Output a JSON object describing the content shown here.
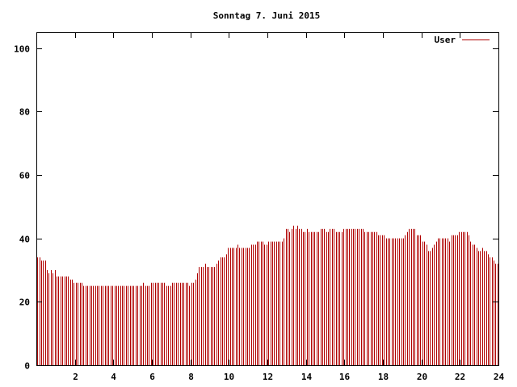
{
  "chart_data": {
    "type": "bar",
    "title": "Sonntag 7. Juni 2015",
    "xlabel": "",
    "ylabel": "",
    "xlim": [
      0,
      24
    ],
    "ylim": [
      0,
      105
    ],
    "x_ticks": [
      2,
      4,
      6,
      8,
      10,
      12,
      14,
      16,
      18,
      20,
      22,
      24
    ],
    "x_tick_labels": [
      "2",
      "4",
      "6",
      "8",
      "10",
      "12",
      "14",
      "16",
      "18",
      "20",
      "22",
      "24"
    ],
    "y_ticks": [
      0,
      20,
      40,
      60,
      80,
      100
    ],
    "y_tick_labels": [
      "0",
      "20",
      "40",
      "60",
      "80",
      "100"
    ],
    "grid": false,
    "legend": {
      "position": "top-right"
    },
    "series": [
      {
        "name": "User",
        "color": "#b00000",
        "step_hours": 0.1,
        "values": [
          34,
          34,
          33,
          33,
          33,
          30,
          29,
          30,
          29,
          30,
          28,
          28,
          28,
          28,
          28,
          28,
          28,
          27,
          27,
          26,
          26,
          26,
          26,
          26,
          25,
          25,
          25,
          25,
          25,
          25,
          25,
          25,
          25,
          25,
          25,
          25,
          25,
          25,
          25,
          25,
          25,
          25,
          25,
          25,
          25,
          25,
          25,
          25,
          25,
          25,
          25,
          25,
          25,
          25,
          25,
          26,
          25,
          25,
          25,
          26,
          26,
          26,
          26,
          26,
          26,
          26,
          26,
          25,
          25,
          25,
          26,
          26,
          26,
          26,
          26,
          26,
          26,
          26,
          26,
          25,
          26,
          26,
          27,
          29,
          31,
          31,
          31,
          32,
          31,
          31,
          31,
          31,
          31,
          32,
          33,
          34,
          34,
          34,
          35,
          37,
          37,
          37,
          37,
          37,
          38,
          37,
          37,
          37,
          37,
          37,
          37,
          38,
          38,
          38,
          39,
          39,
          39,
          39,
          38,
          38,
          39,
          39,
          39,
          39,
          39,
          39,
          39,
          39,
          40,
          43,
          43,
          42,
          43,
          44,
          43,
          44,
          43,
          43,
          42,
          42,
          43,
          42,
          42,
          42,
          42,
          42,
          42,
          43,
          43,
          43,
          42,
          42,
          43,
          43,
          43,
          42,
          42,
          42,
          42,
          43,
          43,
          43,
          43,
          43,
          43,
          43,
          43,
          43,
          43,
          43,
          42,
          42,
          42,
          42,
          42,
          42,
          42,
          41,
          41,
          41,
          41,
          40,
          40,
          40,
          40,
          40,
          40,
          40,
          40,
          40,
          40,
          41,
          42,
          43,
          43,
          43,
          43,
          41,
          41,
          41,
          39,
          39,
          38,
          36,
          36,
          37,
          38,
          39,
          40,
          40,
          40,
          40,
          40,
          40,
          39,
          41,
          41,
          41,
          41,
          42,
          42,
          42,
          42,
          42,
          41,
          39,
          38,
          38,
          37,
          36,
          36,
          37,
          36,
          36,
          35,
          34,
          34,
          33,
          32,
          32
        ]
      }
    ]
  }
}
